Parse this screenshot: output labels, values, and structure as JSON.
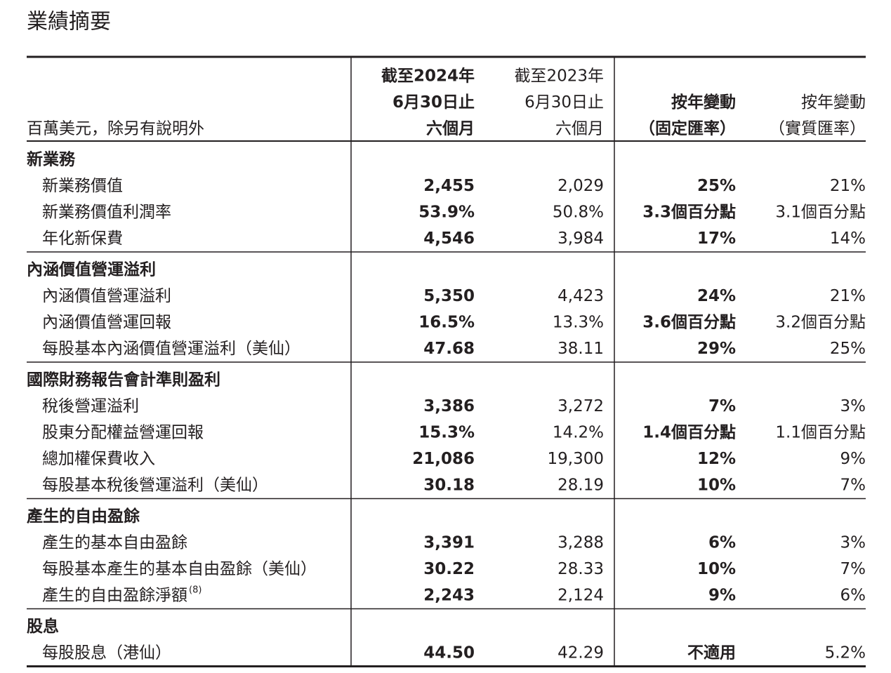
{
  "title": "業績摘要",
  "header": {
    "unit_label": "百萬美元，除另有說明外",
    "columns": [
      [
        "截至2024年",
        "6月30日止",
        "六個月"
      ],
      [
        "截至2023年",
        "6月30日止",
        "六個月"
      ],
      [
        "按年變動",
        "（固定匯率）"
      ],
      [
        "按年變動",
        "（實質匯率）"
      ]
    ]
  },
  "sections": [
    {
      "title": "新業務",
      "rows": [
        {
          "label": "新業務價值",
          "values": [
            "2,455",
            "2,029",
            "25%",
            "21%"
          ]
        },
        {
          "label": "新業務價值利潤率",
          "values": [
            "53.9%",
            "50.8%",
            "3.3個百分點",
            "3.1個百分點"
          ]
        },
        {
          "label": "年化新保費",
          "values": [
            "4,546",
            "3,984",
            "17%",
            "14%"
          ]
        }
      ]
    },
    {
      "title": "內涵價值營運溢利",
      "rows": [
        {
          "label": "內涵價值營運溢利",
          "values": [
            "5,350",
            "4,423",
            "24%",
            "21%"
          ]
        },
        {
          "label": "內涵價值營運回報",
          "values": [
            "16.5%",
            "13.3%",
            "3.6個百分點",
            "3.2個百分點"
          ]
        },
        {
          "label": "每股基本內涵價值營運溢利（美仙）",
          "values": [
            "47.68",
            "38.11",
            "29%",
            "25%"
          ]
        }
      ]
    },
    {
      "title": "國際財務報告會計準則盈利",
      "rows": [
        {
          "label": "稅後營運溢利",
          "values": [
            "3,386",
            "3,272",
            "7%",
            "3%"
          ]
        },
        {
          "label": "股東分配權益營運回報",
          "values": [
            "15.3%",
            "14.2%",
            "1.4個百分點",
            "1.1個百分點"
          ]
        },
        {
          "label": "總加權保費收入",
          "values": [
            "21,086",
            "19,300",
            "12%",
            "9%"
          ]
        },
        {
          "label": "每股基本稅後營運溢利（美仙）",
          "values": [
            "30.18",
            "28.19",
            "10%",
            "7%"
          ]
        }
      ]
    },
    {
      "title": "產生的自由盈餘",
      "rows": [
        {
          "label": "產生的基本自由盈餘",
          "values": [
            "3,391",
            "3,288",
            "6%",
            "3%"
          ]
        },
        {
          "label": "每股基本產生的基本自由盈餘（美仙）",
          "values": [
            "30.22",
            "28.33",
            "10%",
            "7%"
          ]
        },
        {
          "label": "產生的自由盈餘淨額",
          "footnote": "(8)",
          "values": [
            "2,243",
            "2,124",
            "9%",
            "6%"
          ]
        }
      ]
    },
    {
      "title": "股息",
      "rows": [
        {
          "label": "每股股息（港仙）",
          "values": [
            "44.50",
            "42.29",
            "不適用",
            "5.2%"
          ]
        }
      ]
    }
  ]
}
